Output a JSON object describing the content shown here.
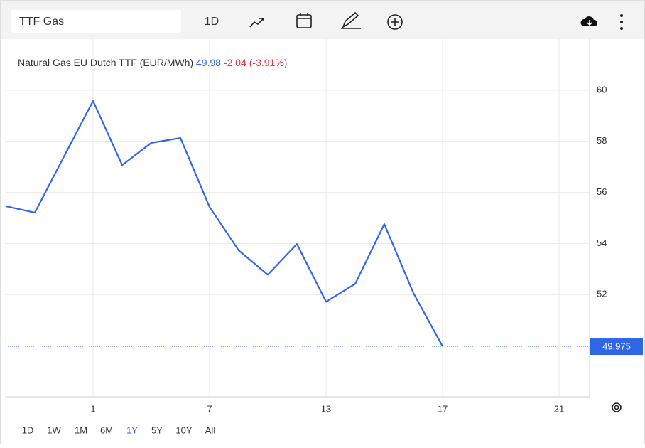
{
  "toolbar": {
    "symbol": "TTF Gas",
    "interval": "1D"
  },
  "chart_data": {
    "type": "line",
    "title": "Natural Gas EU Dutch TTF (EUR/MWh)",
    "last": "49.98",
    "change": "-2.04",
    "change_pct": "(-3.91%)",
    "categories": [
      null,
      null,
      null,
      "1",
      null,
      null,
      null,
      "7",
      null,
      null,
      null,
      "13",
      null,
      null,
      null,
      "17",
      null,
      null,
      null,
      "21",
      null
    ],
    "values": [
      55.46,
      55.21,
      57.4,
      59.58,
      57.07,
      57.94,
      58.13,
      55.43,
      53.73,
      52.78,
      53.98,
      51.72,
      52.42,
      54.76,
      52.06,
      49.975,
      null,
      null,
      null,
      null,
      null
    ],
    "color": "#2f66e8",
    "last_price": 49.975,
    "ylim": [
      48,
      62
    ],
    "yticks": [
      52,
      54,
      56,
      58,
      60
    ],
    "grid": true
  },
  "ranges": [
    "1D",
    "1W",
    "1M",
    "6M",
    "1Y",
    "5Y",
    "10Y",
    "All"
  ],
  "active_range": "1Y"
}
